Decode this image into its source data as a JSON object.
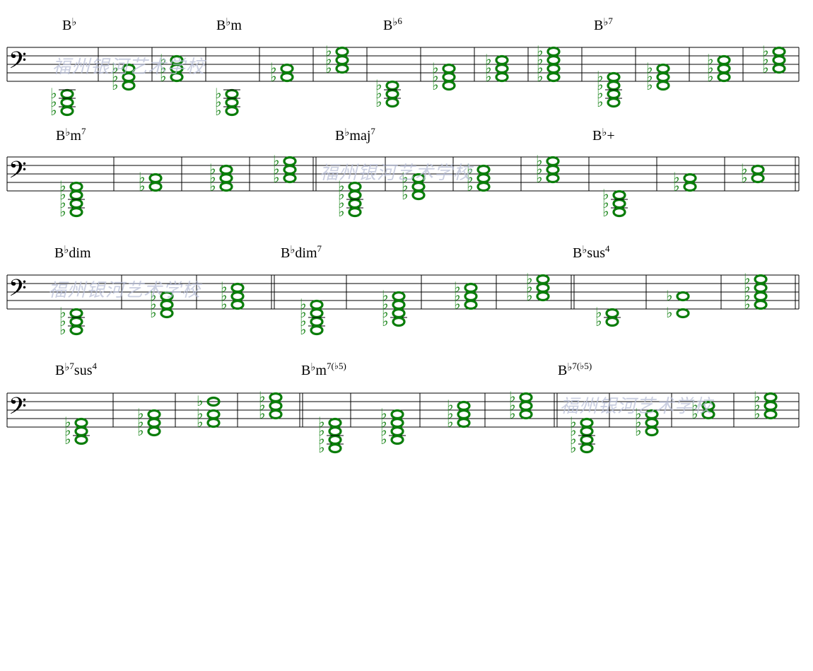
{
  "watermark_text": "福州银河艺术学校",
  "note_color": "#0a7d0a",
  "systems": [
    {
      "chords": [
        {
          "root": "B",
          "accidental": "♭",
          "quality": "",
          "sup": ""
        },
        {
          "root": "B",
          "accidental": "♭",
          "quality": "m",
          "sup": ""
        },
        {
          "root": "B",
          "accidental": "♭",
          "quality": "",
          "sup": "6"
        },
        {
          "root": "B",
          "accidental": "♭",
          "quality": "",
          "sup": "7"
        }
      ]
    },
    {
      "chords": [
        {
          "root": "B",
          "accidental": "♭",
          "quality": "m",
          "sup": "7"
        },
        {
          "root": "B",
          "accidental": "♭",
          "quality": "maj",
          "sup": "7"
        },
        {
          "root": "B",
          "accidental": "♭",
          "quality": "+",
          "sup": ""
        }
      ]
    },
    {
      "chords": [
        {
          "root": "B",
          "accidental": "♭",
          "quality": "dim",
          "sup": ""
        },
        {
          "root": "B",
          "accidental": "♭",
          "quality": "dim",
          "sup": "7"
        },
        {
          "root": "B",
          "accidental": "♭",
          "quality": "sus",
          "sup": "4"
        }
      ]
    },
    {
      "chords": [
        {
          "root": "B",
          "accidental": "♭",
          "quality": "",
          "sup": "7",
          "suffix": "sus",
          "suffix_sup": "4"
        },
        {
          "root": "B",
          "accidental": "♭",
          "quality": "m",
          "sup": "7(♭5)"
        },
        {
          "root": "B",
          "accidental": "♭",
          "quality": "",
          "sup": "7(♭5)"
        }
      ]
    }
  ]
}
